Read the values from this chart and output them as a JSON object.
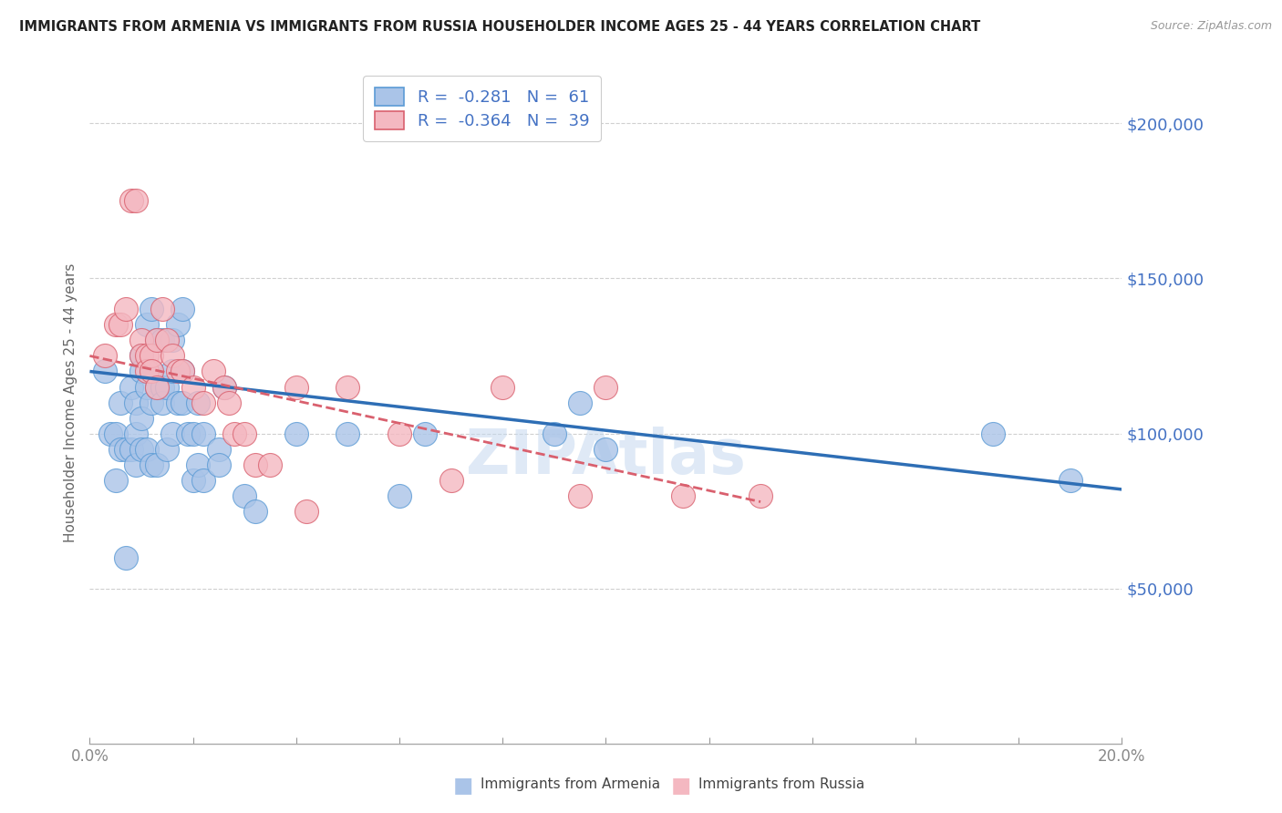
{
  "title": "IMMIGRANTS FROM ARMENIA VS IMMIGRANTS FROM RUSSIA HOUSEHOLDER INCOME AGES 25 - 44 YEARS CORRELATION CHART",
  "source": "Source: ZipAtlas.com",
  "ylabel": "Householder Income Ages 25 - 44 years",
  "x_min": 0.0,
  "x_max": 0.2,
  "y_min": 0,
  "y_max": 220000,
  "yticks": [
    50000,
    100000,
    150000,
    200000
  ],
  "ytick_labels": [
    "$50,000",
    "$100,000",
    "$150,000",
    "$200,000"
  ],
  "xticks": [
    0.0,
    0.02,
    0.04,
    0.06,
    0.08,
    0.1,
    0.12,
    0.14,
    0.16,
    0.18,
    0.2
  ],
  "armenia_color": "#aac4e8",
  "armenia_edge": "#5b9bd5",
  "russia_color": "#f4b8c1",
  "russia_edge": "#d9606e",
  "armenia_line_color": "#2e6eb5",
  "russia_line_color": "#d9606e",
  "legend_R_color": "#4472c4",
  "legend_N_color": "#4472c4",
  "bottom_legend_armenia": "Immigrants from Armenia",
  "bottom_legend_russia": "Immigrants from Russia",
  "background_color": "#ffffff",
  "grid_color": "#d0d0d0",
  "title_color": "#222222",
  "yaxis_label_color": "#666666",
  "ytick_color": "#4472c4",
  "xtick_color": "#888888",
  "watermark": "ZIPAtlas",
  "armenia_scatter_x": [
    0.003,
    0.004,
    0.005,
    0.005,
    0.006,
    0.006,
    0.007,
    0.007,
    0.008,
    0.008,
    0.009,
    0.009,
    0.009,
    0.01,
    0.01,
    0.01,
    0.01,
    0.011,
    0.011,
    0.011,
    0.012,
    0.012,
    0.012,
    0.012,
    0.013,
    0.013,
    0.013,
    0.014,
    0.014,
    0.014,
    0.015,
    0.015,
    0.016,
    0.016,
    0.016,
    0.017,
    0.017,
    0.018,
    0.018,
    0.018,
    0.019,
    0.02,
    0.02,
    0.021,
    0.021,
    0.022,
    0.022,
    0.025,
    0.025,
    0.026,
    0.03,
    0.032,
    0.04,
    0.05,
    0.06,
    0.065,
    0.09,
    0.095,
    0.1,
    0.175,
    0.19
  ],
  "armenia_scatter_y": [
    120000,
    100000,
    100000,
    85000,
    110000,
    95000,
    95000,
    60000,
    115000,
    95000,
    110000,
    100000,
    90000,
    125000,
    120000,
    105000,
    95000,
    135000,
    115000,
    95000,
    140000,
    120000,
    110000,
    90000,
    130000,
    115000,
    90000,
    130000,
    115000,
    110000,
    115000,
    95000,
    130000,
    120000,
    100000,
    135000,
    110000,
    140000,
    120000,
    110000,
    100000,
    100000,
    85000,
    110000,
    90000,
    100000,
    85000,
    95000,
    90000,
    115000,
    80000,
    75000,
    100000,
    100000,
    80000,
    100000,
    100000,
    110000,
    95000,
    100000,
    85000
  ],
  "russia_scatter_x": [
    0.003,
    0.005,
    0.006,
    0.007,
    0.008,
    0.009,
    0.01,
    0.01,
    0.011,
    0.011,
    0.012,
    0.012,
    0.013,
    0.013,
    0.014,
    0.015,
    0.016,
    0.017,
    0.018,
    0.02,
    0.022,
    0.024,
    0.026,
    0.027,
    0.028,
    0.03,
    0.032,
    0.035,
    0.04,
    0.042,
    0.05,
    0.06,
    0.07,
    0.08,
    0.095,
    0.1,
    0.115,
    0.13
  ],
  "russia_scatter_y": [
    125000,
    135000,
    135000,
    140000,
    175000,
    175000,
    130000,
    125000,
    125000,
    120000,
    125000,
    120000,
    130000,
    115000,
    140000,
    130000,
    125000,
    120000,
    120000,
    115000,
    110000,
    120000,
    115000,
    110000,
    100000,
    100000,
    90000,
    90000,
    115000,
    75000,
    115000,
    100000,
    85000,
    115000,
    80000,
    115000,
    80000,
    80000
  ],
  "arm_line_x0": 0.0,
  "arm_line_y0": 120000,
  "arm_line_x1": 0.2,
  "arm_line_y1": 82000,
  "rus_line_x0": 0.0,
  "rus_line_y0": 125000,
  "rus_line_x1": 0.13,
  "rus_line_y1": 78000
}
